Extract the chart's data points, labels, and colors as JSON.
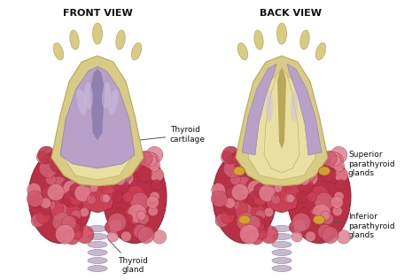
{
  "bg_color": "#ffffff",
  "title_front": "FRONT VIEW",
  "title_back": "BACK VIEW",
  "label_thyroid_cartilage": "Thyroid\ncartilage",
  "label_thyroid_gland": "Thyroid\ngland",
  "label_superior": "Superior\nparathyroid\nglands",
  "label_inferior": "Inferior\nparathyroid\nglands",
  "title_fontsize": 8,
  "label_fontsize": 6.5,
  "fig_width": 4.74,
  "fig_height": 3.16,
  "dpi": 100,
  "cartilage_color": "#d8cc85",
  "cartilage_dark": "#b8a85a",
  "cartilage_light": "#e8dfa0",
  "muscle_color_main": "#b8a0c8",
  "muscle_color_dark": "#9080b0",
  "muscle_color_light": "#d0c0e0",
  "thyroid_base": "#b83045",
  "thyroid_mid": "#cc4055",
  "thyroid_lobule": "#d06075",
  "thyroid_highlight": "#e08090",
  "thyroid_shadow": "#902030",
  "parathyroid_dot": "#d4a030",
  "parathyroid_dot_dark": "#a07020",
  "trachea_color": "#c8b8cc",
  "trachea_edge": "#a090b0"
}
